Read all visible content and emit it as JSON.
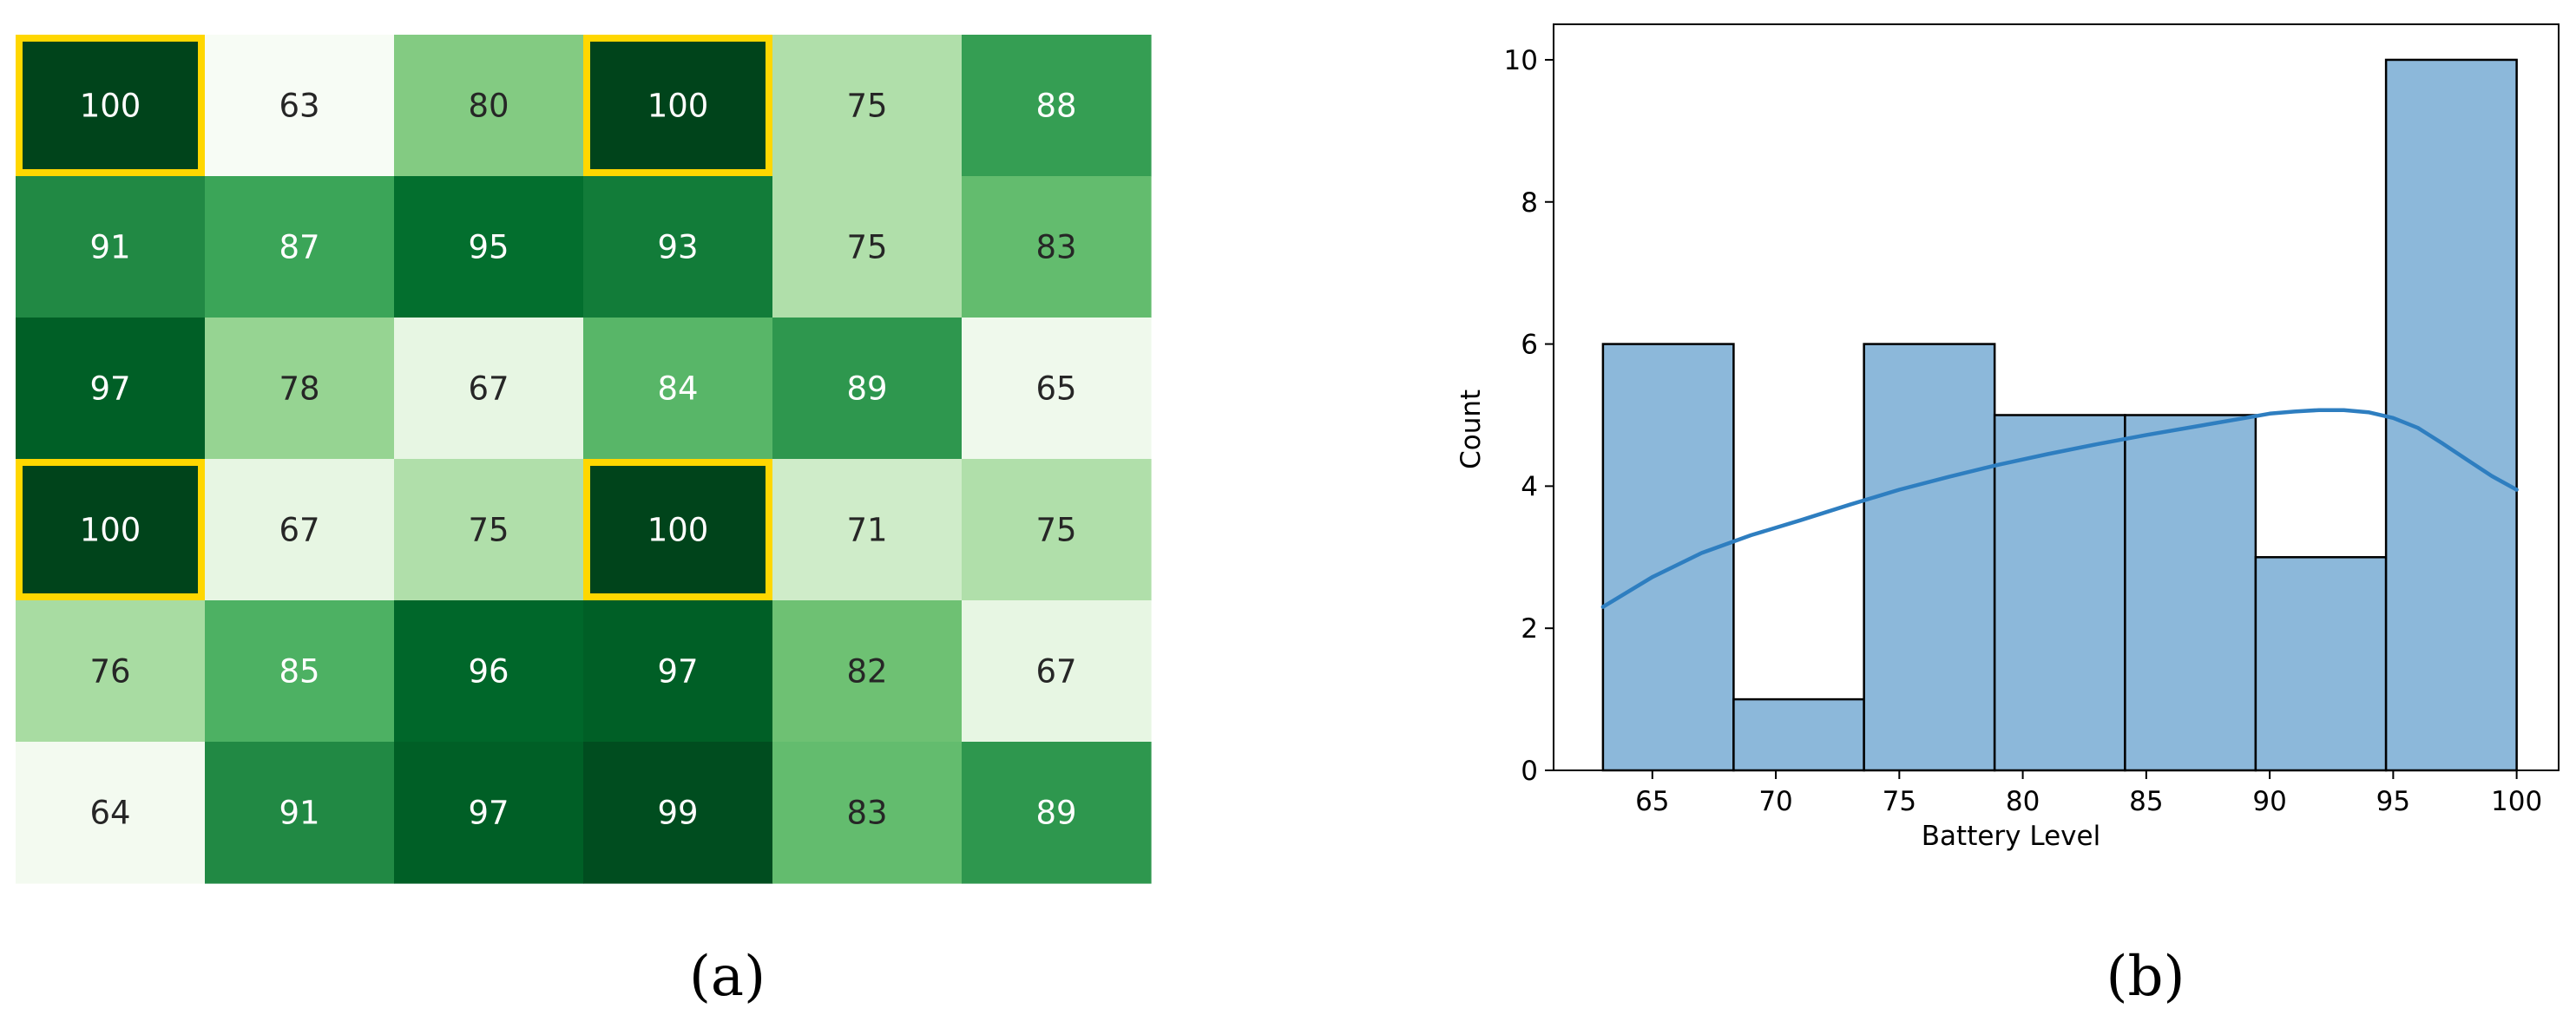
{
  "chart_data": [
    {
      "type": "heatmap",
      "panel_label": "(a)",
      "colormap": "Greens",
      "value_range": [
        63,
        100
      ],
      "rows": [
        [
          100,
          63,
          80,
          100,
          75,
          88
        ],
        [
          91,
          87,
          95,
          93,
          75,
          83
        ],
        [
          97,
          78,
          67,
          84,
          89,
          65
        ],
        [
          100,
          67,
          75,
          100,
          71,
          75
        ],
        [
          76,
          85,
          96,
          97,
          82,
          67
        ],
        [
          64,
          91,
          97,
          99,
          83,
          89
        ]
      ],
      "highlighted_cells": [
        [
          0,
          0
        ],
        [
          0,
          3
        ],
        [
          3,
          0
        ],
        [
          3,
          3
        ]
      ],
      "highlight_color": "#FFD700",
      "colorbar": false,
      "axis_ticks": false
    },
    {
      "type": "bar",
      "subtype": "histogram_with_kde",
      "panel_label": "(b)",
      "xlabel": "Battery Level",
      "ylabel": "Count",
      "bin_edges": [
        63,
        68.29,
        73.57,
        78.86,
        84.14,
        89.43,
        94.71,
        100
      ],
      "counts": [
        6,
        1,
        6,
        5,
        5,
        3,
        10
      ],
      "kde": {
        "x": [
          63,
          65,
          67,
          69,
          71,
          73,
          75,
          77,
          79,
          81,
          83,
          85,
          87,
          89,
          90,
          91,
          92,
          93,
          94,
          95,
          96,
          97,
          98,
          99,
          100
        ],
        "y": [
          2.3,
          2.72,
          3.06,
          3.31,
          3.52,
          3.74,
          3.95,
          4.13,
          4.3,
          4.45,
          4.59,
          4.72,
          4.84,
          4.96,
          5.02,
          5.05,
          5.07,
          5.07,
          5.04,
          4.96,
          4.82,
          4.6,
          4.37,
          4.14,
          3.95
        ]
      },
      "xlim": [
        61,
        101.7
      ],
      "ylim": [
        0,
        10.5
      ],
      "xticks": [
        65,
        70,
        75,
        80,
        85,
        90,
        95,
        100
      ],
      "yticks": [
        0,
        2,
        4,
        6,
        8,
        10
      ],
      "bar_color": "#8CB8DA",
      "kde_color": "#2E7EC0",
      "grid": false,
      "legend": false
    }
  ]
}
